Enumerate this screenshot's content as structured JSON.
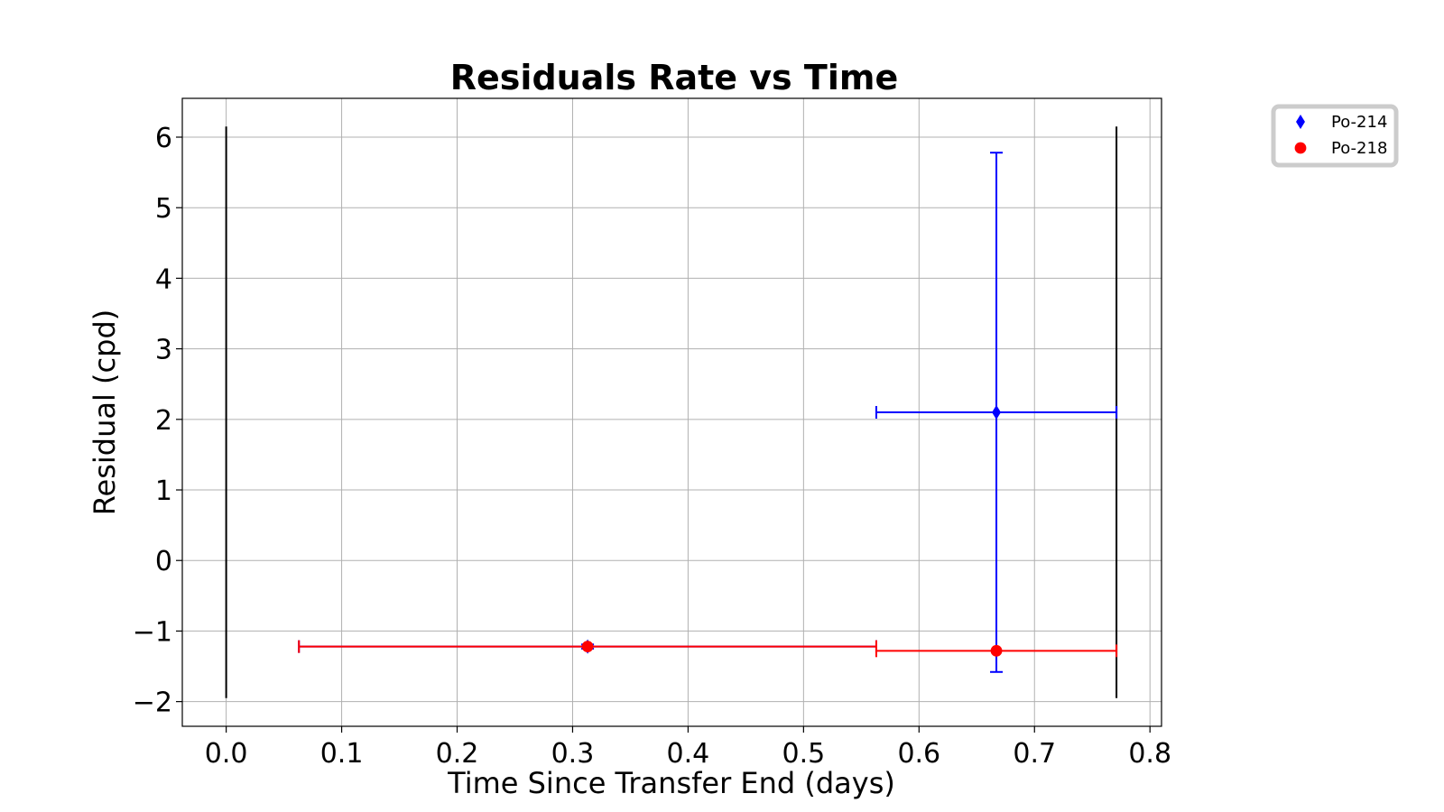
{
  "chart_data": {
    "type": "scatter",
    "title": "Residuals Rate vs Time",
    "xlabel": "Time Since Transfer End (days)",
    "ylabel": "Residual (cpd)",
    "xlim": [
      -0.038,
      0.81
    ],
    "ylim": [
      -2.35,
      6.55
    ],
    "xticks": [
      0.0,
      0.1,
      0.2,
      0.3,
      0.4,
      0.5,
      0.6,
      0.7,
      0.8
    ],
    "xtick_labels": [
      "0.0",
      "0.1",
      "0.2",
      "0.3",
      "0.4",
      "0.5",
      "0.6",
      "0.7",
      "0.8"
    ],
    "yticks": [
      -2,
      -1,
      0,
      1,
      2,
      3,
      4,
      5,
      6
    ],
    "ytick_labels": [
      "−2",
      "−1",
      "0",
      "1",
      "2",
      "3",
      "4",
      "5",
      "6"
    ],
    "grid": true,
    "legend_position": "outside-top-right",
    "vertical_lines": {
      "x": [
        0.0,
        0.771
      ],
      "ymin": -1.95,
      "ymax": 6.15,
      "color": "#000000"
    },
    "series": [
      {
        "name": "Po-214",
        "marker": "diamond",
        "color": "#0000ff",
        "points": [
          {
            "x": 0.313,
            "y": -1.22,
            "xerr_low": 0.25,
            "xerr_high": 0.25,
            "yerr_low": 0.03,
            "yerr_high": 0.03
          },
          {
            "x": 0.667,
            "y": 2.1,
            "xerr_low": 0.104,
            "xerr_high": 0.104,
            "yerr_low": 3.68,
            "yerr_high": 3.68
          }
        ]
      },
      {
        "name": "Po-218",
        "marker": "circle",
        "color": "#ff0000",
        "points": [
          {
            "x": 0.313,
            "y": -1.22,
            "xerr_low": 0.25,
            "xerr_high": 0.25,
            "yerr_low": 0,
            "yerr_high": 0
          },
          {
            "x": 0.667,
            "y": -1.28,
            "xerr_low": 0.104,
            "xerr_high": 0.104,
            "yerr_low": 0,
            "yerr_high": 0
          }
        ]
      }
    ]
  }
}
